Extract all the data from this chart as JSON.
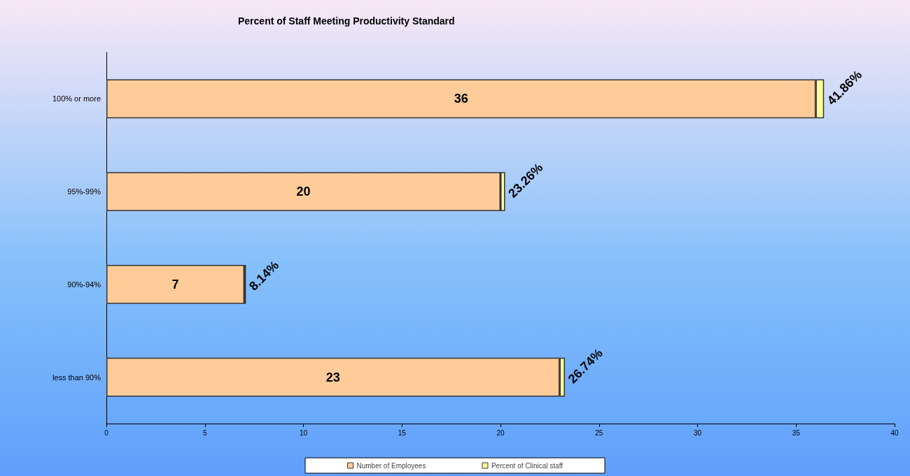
{
  "chart_data": {
    "type": "bar",
    "orientation": "horizontal",
    "stacked": true,
    "title": "Percent of Staff Meeting Productivity Standard",
    "categories": [
      "100% or more",
      "95%-99%",
      "90%-94%",
      "less than 90%"
    ],
    "series": [
      {
        "name": "Number of Employees",
        "color": "#ffcc99",
        "values": [
          36,
          20,
          7,
          23
        ],
        "value_labels": [
          "36",
          "20",
          "7",
          "23"
        ]
      },
      {
        "name": "Percent of Clinical staff",
        "color": "#ffff99",
        "values": [
          0.4186,
          0.2326,
          0.0814,
          0.2674
        ],
        "value_labels": [
          "41.86%",
          "23.26%",
          "8.14%",
          "26.74%"
        ]
      }
    ],
    "xlim": [
      0,
      40
    ],
    "xticks": [
      0,
      5,
      10,
      15,
      20,
      25,
      30,
      35,
      40
    ],
    "grid": false,
    "legend": "bottom"
  }
}
